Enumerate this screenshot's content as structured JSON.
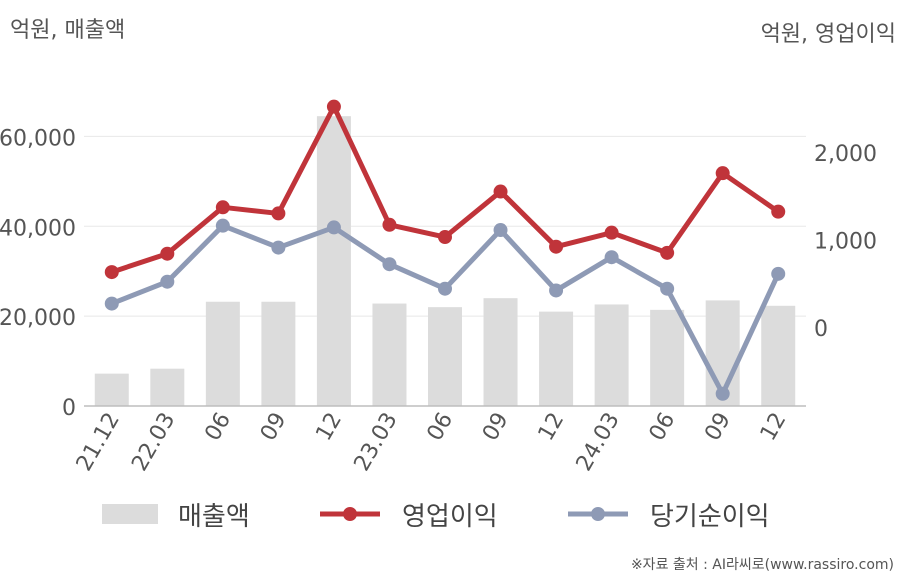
{
  "units": {
    "left": "억원, 매출액",
    "right": "억원, 영업이익"
  },
  "source": "※자료 출처 : AI라씨로(www.rassiro.com)",
  "colors": {
    "revenue": "#dcdcdc",
    "operating_profit": "#c0343a",
    "net_income": "#8e9ab5",
    "grid": "#e8e8e8",
    "axis": "#bdbdbd"
  },
  "chart_data": {
    "type": "bar+line",
    "categories": [
      "21.12",
      "22.03",
      "06",
      "09",
      "12",
      "23.03",
      "06",
      "09",
      "12",
      "24.03",
      "06",
      "09",
      "12"
    ],
    "left_axis": {
      "ticks": [
        0,
        20000,
        40000,
        60000
      ],
      "tick_labels": [
        "0",
        "20,000",
        "40,000",
        "60,000"
      ],
      "range": [
        0,
        75000
      ]
    },
    "right_axis": {
      "ticks": [
        0,
        1000,
        2000
      ],
      "tick_labels": [
        "0",
        "1,000",
        "2,000"
      ],
      "range": [
        -900,
        2950
      ]
    },
    "grid": true,
    "legend_position": "bottom",
    "series": [
      {
        "name": "매출액",
        "type": "bar",
        "axis": "left",
        "values": [
          7200,
          8300,
          23200,
          23200,
          64500,
          22800,
          22000,
          24000,
          21000,
          22600,
          21400,
          23500,
          22300
        ]
      },
      {
        "name": "영업이익",
        "type": "line",
        "axis": "right",
        "values": [
          630,
          840,
          1370,
          1300,
          2520,
          1170,
          1030,
          1550,
          920,
          1080,
          850,
          1760,
          1320
        ]
      },
      {
        "name": "당기순이익",
        "type": "line",
        "axis": "right",
        "values": [
          270,
          520,
          1160,
          910,
          1140,
          720,
          440,
          1110,
          420,
          800,
          440,
          -760,
          610
        ]
      }
    ]
  }
}
